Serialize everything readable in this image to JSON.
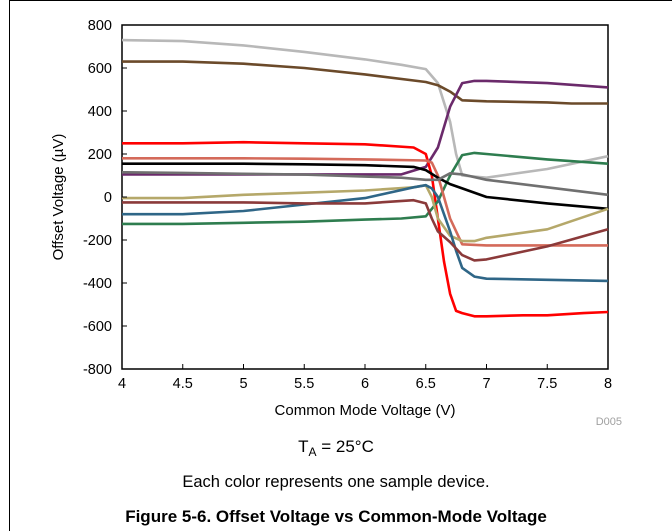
{
  "chart_data": {
    "type": "line",
    "xlabel": "Common Mode Voltage (V)",
    "ylabel": "Offset Voltage (µV)",
    "xlim": [
      4,
      8
    ],
    "ylim": [
      -800,
      800
    ],
    "xticks": [
      "4",
      "4.5",
      "5",
      "5.5",
      "6",
      "6.5",
      "7",
      "7.5",
      "8"
    ],
    "yticks": [
      "800",
      "600",
      "400",
      "200",
      "0",
      "-200",
      "-400",
      "-600",
      "-800"
    ],
    "grid": false,
    "legend": "none",
    "code": "D005",
    "series": [
      {
        "color": "#b8b8b8",
        "x": [
          4,
          4.5,
          5,
          5.5,
          6,
          6.3,
          6.5,
          6.6,
          6.7,
          6.75,
          6.8,
          7,
          7.5,
          8
        ],
        "y": [
          730,
          725,
          705,
          675,
          640,
          615,
          595,
          530,
          350,
          200,
          100,
          90,
          130,
          190
        ]
      },
      {
        "color": "#6b4a2a",
        "x": [
          4,
          4.5,
          5,
          5.5,
          6,
          6.5,
          6.6,
          6.7,
          6.8,
          7,
          7.5,
          7.7,
          8
        ],
        "y": [
          630,
          630,
          620,
          600,
          570,
          535,
          520,
          490,
          450,
          445,
          440,
          435,
          435
        ]
      },
      {
        "color": "#6b2a6b",
        "x": [
          4,
          4.5,
          5,
          5.5,
          6,
          6.3,
          6.5,
          6.6,
          6.7,
          6.8,
          6.9,
          7,
          7.5,
          8
        ],
        "y": [
          105,
          105,
          105,
          105,
          105,
          105,
          140,
          230,
          420,
          530,
          540,
          540,
          530,
          510
        ]
      },
      {
        "color": "#ff0000",
        "x": [
          4,
          4.5,
          5,
          5.5,
          6,
          6.4,
          6.5,
          6.55,
          6.6,
          6.65,
          6.7,
          6.75,
          6.8,
          6.9,
          7,
          7.3,
          7.5,
          7.8,
          8
        ],
        "y": [
          250,
          250,
          255,
          250,
          245,
          230,
          200,
          100,
          -100,
          -300,
          -450,
          -530,
          -540,
          -555,
          -555,
          -550,
          -550,
          -540,
          -535
        ]
      },
      {
        "color": "#2e7d4f",
        "x": [
          4,
          4.5,
          5,
          5.5,
          6,
          6.3,
          6.5,
          6.6,
          6.7,
          6.8,
          6.9,
          7,
          7.5,
          8
        ],
        "y": [
          -125,
          -125,
          -120,
          -115,
          -105,
          -100,
          -90,
          -20,
          100,
          195,
          205,
          200,
          175,
          155
        ]
      },
      {
        "color": "#d46a5a",
        "x": [
          4,
          4.5,
          5,
          5.5,
          6,
          6.5,
          6.55,
          6.6,
          6.7,
          6.8,
          7,
          7.5,
          8
        ],
        "y": [
          180,
          180,
          180,
          178,
          175,
          170,
          160,
          100,
          -100,
          -220,
          -225,
          -225,
          -225
        ]
      },
      {
        "color": "#000000",
        "x": [
          4,
          4.5,
          5,
          5.5,
          6,
          6.4,
          6.5,
          6.6,
          6.7,
          6.8,
          7,
          7.5,
          8
        ],
        "y": [
          155,
          155,
          155,
          152,
          148,
          140,
          125,
          90,
          60,
          40,
          0,
          -30,
          -55
        ]
      },
      {
        "color": "#707070",
        "x": [
          4,
          4.5,
          5,
          5.5,
          6,
          6.3,
          6.5,
          6.6,
          6.7,
          6.8,
          7,
          7.5,
          8
        ],
        "y": [
          115,
          112,
          108,
          104,
          95,
          90,
          80,
          80,
          110,
          105,
          80,
          45,
          10
        ]
      },
      {
        "color": "#b5a86a",
        "x": [
          4,
          4.5,
          5,
          5.5,
          6,
          6.4,
          6.5,
          6.55,
          6.6,
          6.7,
          6.8,
          6.9,
          7,
          7.5,
          8
        ],
        "y": [
          -5,
          -5,
          10,
          20,
          30,
          45,
          55,
          0,
          -100,
          -180,
          -205,
          -205,
          -190,
          -150,
          -55
        ]
      },
      {
        "color": "#2f6687",
        "x": [
          4,
          4.5,
          5,
          5.5,
          6,
          6.4,
          6.5,
          6.55,
          6.6,
          6.65,
          6.7,
          6.75,
          6.8,
          6.9,
          7,
          7.5,
          8
        ],
        "y": [
          -80,
          -80,
          -65,
          -35,
          -5,
          45,
          55,
          40,
          0,
          -80,
          -160,
          -250,
          -330,
          -370,
          -380,
          -385,
          -390
        ]
      },
      {
        "color": "#8b3a3a",
        "x": [
          4,
          4.5,
          5,
          5.5,
          6,
          6.4,
          6.5,
          6.55,
          6.6,
          6.7,
          6.8,
          6.9,
          7,
          7.5,
          8
        ],
        "y": [
          -25,
          -25,
          -25,
          -30,
          -30,
          -15,
          -30,
          -100,
          -160,
          -210,
          -270,
          -295,
          -290,
          -230,
          -150
        ]
      }
    ]
  },
  "caption": {
    "ta_prefix": "T",
    "ta_sub": "A",
    "ta_suffix": " = 25°C",
    "note": "Each color represents one sample device.",
    "figure": "Figure 5-6. Offset Voltage vs Common-Mode Voltage"
  }
}
